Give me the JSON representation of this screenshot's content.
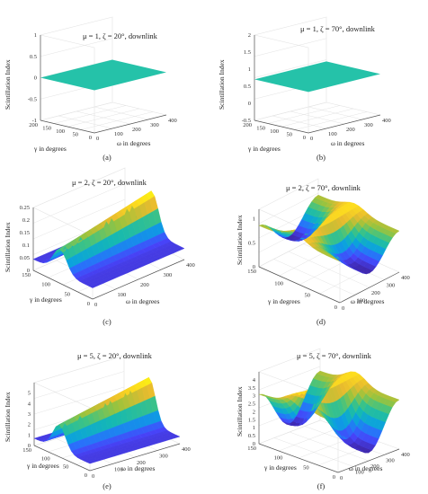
{
  "chart_data": [
    {
      "type": "surface",
      "panel_label": "(a)",
      "title": "μ = 1, ζ = 20°, downlink",
      "zlabel": "Scintillation Index",
      "xlabel": "ω in degrees",
      "ylabel": "γ in degrees",
      "zlim": [
        -1,
        1
      ],
      "zticks": [
        "-1",
        "-0.5",
        "0",
        "0.5",
        "1"
      ],
      "xticks": [
        "0",
        "100",
        "200",
        "300",
        "400"
      ],
      "yticks": [
        "0",
        "50",
        "100",
        "150",
        "200"
      ],
      "shape": "flat",
      "zmin": 0,
      "zmax": 0
    },
    {
      "type": "surface",
      "panel_label": "(b)",
      "title": "μ = 1, ζ = 70°, downlink",
      "zlabel": "Scintillation Index",
      "xlabel": "ω in degrees",
      "ylabel": "γ in degrees",
      "zlim": [
        -0.5,
        2
      ],
      "zticks": [
        "-0.5",
        "0",
        "0.5",
        "1",
        "1.5",
        "2"
      ],
      "xticks": [
        "0",
        "100",
        "200",
        "300",
        "400"
      ],
      "yticks": [
        "0",
        "50",
        "100",
        "150",
        "200"
      ],
      "shape": "flat",
      "zmin": 0.7,
      "zmax": 0.7
    },
    {
      "type": "surface",
      "panel_label": "(c)",
      "title": "μ = 2, ζ = 20°, downlink",
      "zlabel": "Scintillation Index",
      "xlabel": "ω in degrees",
      "ylabel": "γ in degrees",
      "zlim": [
        0,
        0.25
      ],
      "zticks": [
        "0",
        "0.05",
        "0.1",
        "0.15",
        "0.2",
        "0.25"
      ],
      "xticks": [
        "0",
        "100",
        "200",
        "300",
        "400"
      ],
      "yticks": [
        "0",
        "50",
        "100",
        "150"
      ],
      "shape": "ridge",
      "zmin": 0.03,
      "zmax": 0.21
    },
    {
      "type": "surface",
      "panel_label": "(d)",
      "title": "μ = 2, ζ = 70°, downlink",
      "zlabel": "Scintillation Index",
      "xlabel": "ω in degrees",
      "ylabel": "γ in degrees",
      "zlim": [
        0,
        1.2
      ],
      "zticks": [
        "0",
        "0.5",
        "1"
      ],
      "xticks": [
        "0",
        "100",
        "200",
        "300",
        "400"
      ],
      "yticks": [
        "0",
        "50",
        "100",
        "150"
      ],
      "shape": "saddle",
      "zmin": 0.3,
      "zmax": 1.1
    },
    {
      "type": "surface",
      "panel_label": "(e)",
      "title": "μ = 5, ζ = 20°, downlink",
      "zlabel": "Scintillation Index",
      "xlabel": "ω in degrees",
      "ylabel": "γ in degrees",
      "zlim": [
        0,
        6
      ],
      "zticks": [
        "0",
        "1",
        "2",
        "3",
        "4",
        "5"
      ],
      "xticks": [
        "0",
        "100",
        "200",
        "300",
        "400"
      ],
      "yticks": [
        "0",
        "50",
        "100",
        "150"
      ],
      "shape": "ridge",
      "zmin": 0.3,
      "zmax": 5.0
    },
    {
      "type": "surface",
      "panel_label": "(f)",
      "title": "μ = 5, ζ = 70°, downlink",
      "zlabel": "Scintillation Index",
      "xlabel": "ω in degrees",
      "ylabel": "γ in degrees",
      "zlim": [
        0,
        4.5
      ],
      "zticks": [
        "0",
        "0.5",
        "1",
        "1.5",
        "2",
        "2.5",
        "3",
        "3.5",
        "4"
      ],
      "xticks": [
        "0",
        "100",
        "200",
        "300",
        "400"
      ],
      "yticks": [
        "0",
        "50",
        "100",
        "150"
      ],
      "shape": "saddle",
      "zmin": 0.5,
      "zmax": 4.2
    }
  ],
  "colors": {
    "axis": "#555555",
    "grid": "#e3e3e3",
    "flat": "#25c2a9"
  },
  "colormap": [
    "#3e26a8",
    "#4743f8",
    "#2a6ffb",
    "#0ba0e0",
    "#15b9b2",
    "#3fc383",
    "#9cc33c",
    "#e8bb2e",
    "#fddc1e",
    "#f9fb0e"
  ]
}
